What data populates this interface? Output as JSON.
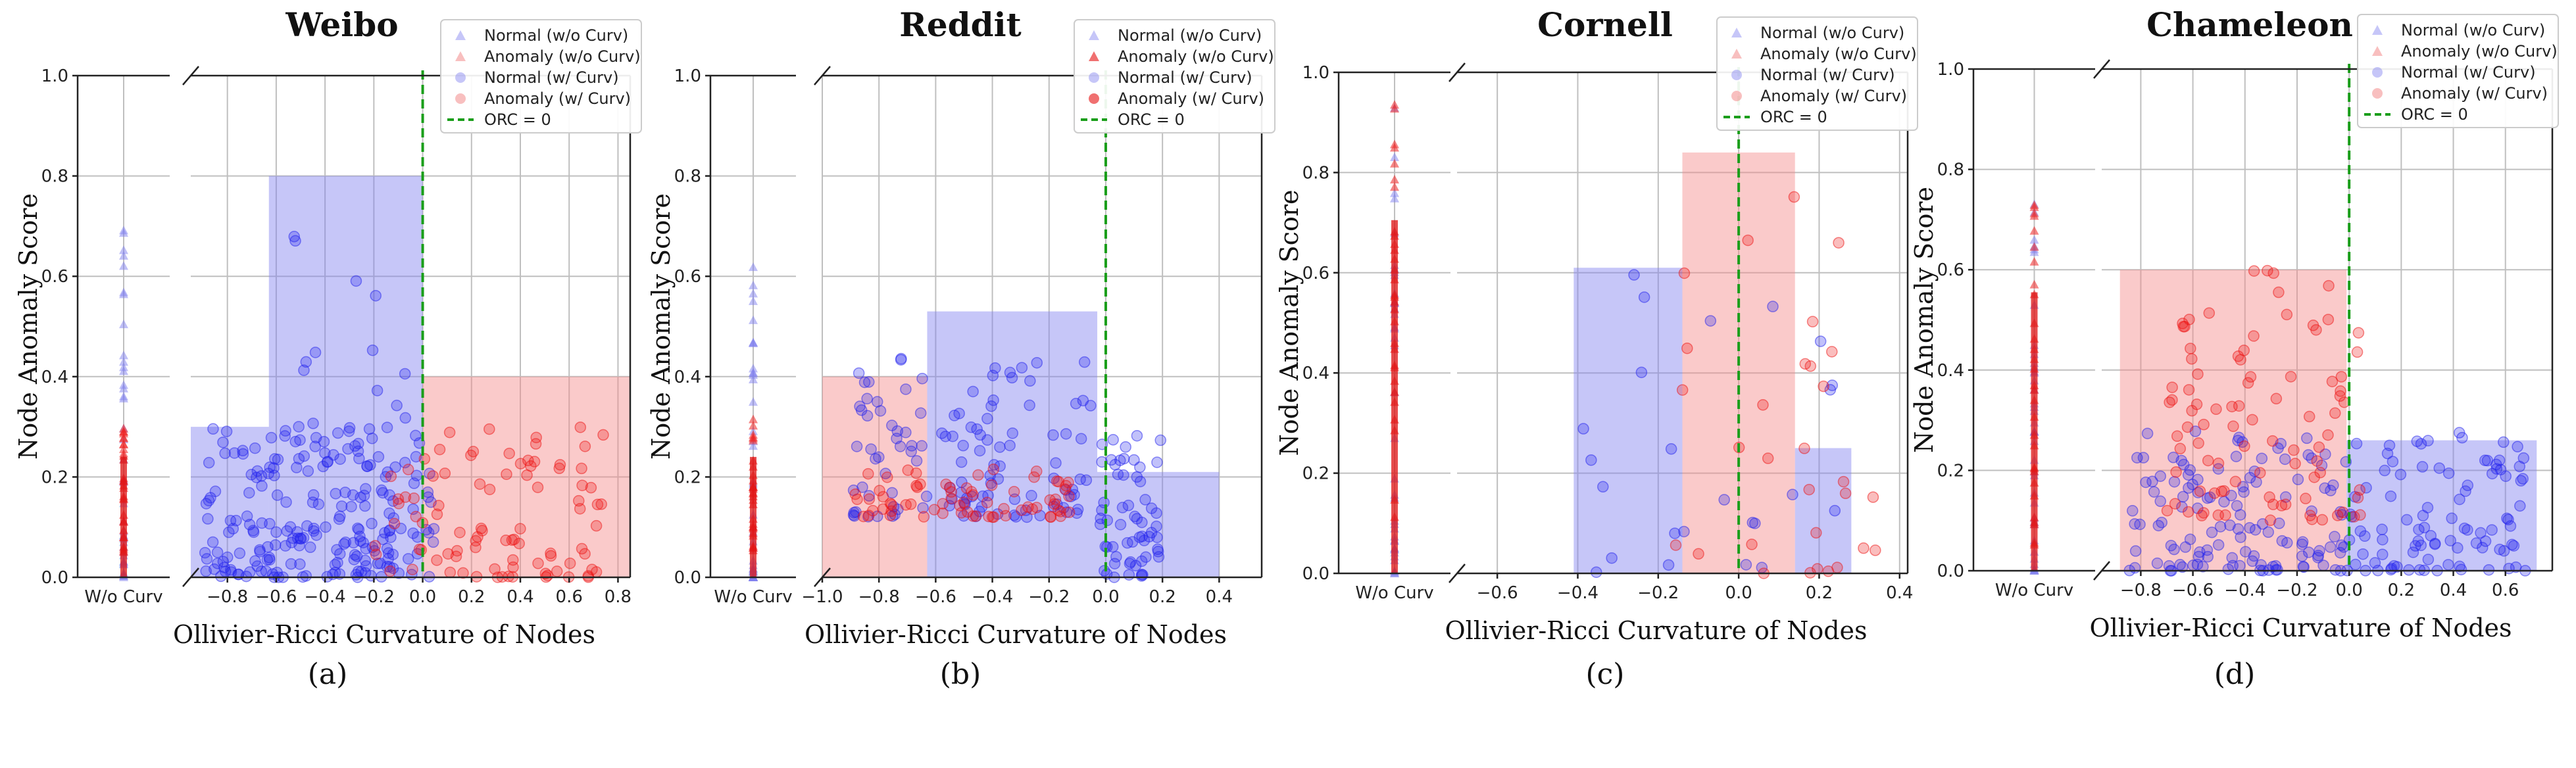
{
  "chart_data": [
    {
      "type": "scatter",
      "panel": "a",
      "title": "Weibo",
      "caption": "(a)",
      "xlabel": "Ollivier-Ricci Curvature of Nodes",
      "ylabel": "Node Anomaly Score",
      "xlim": [
        -0.95,
        0.85
      ],
      "ylim": [
        0,
        1.0
      ],
      "xticks": [
        -0.8,
        -0.6,
        -0.4,
        -0.2,
        0.0,
        0.2,
        0.4,
        0.6,
        0.8
      ],
      "xtick_labels": [
        "−0.8",
        "−0.6",
        "−0.4",
        "−0.2",
        "0.0",
        "0.2",
        "0.4",
        "0.6",
        "0.8"
      ],
      "yticks": [
        0.0,
        0.2,
        0.4,
        0.6,
        0.8,
        1.0
      ],
      "ytick_labels": [
        "0.0",
        "0.2",
        "0.4",
        "0.6",
        "0.8",
        "1.0"
      ],
      "strip_label": "W/o Curv",
      "bars": [
        {
          "x0": -0.95,
          "x1": -0.63,
          "height": 0.3,
          "color": "#8080f0"
        },
        {
          "x0": -0.63,
          "x1": 0.0,
          "height": 0.8,
          "color": "#8080f0"
        },
        {
          "x0": 0.0,
          "x1": 0.85,
          "height": 0.4,
          "color": "#f58a8a"
        }
      ],
      "orc_line_x": 0.0,
      "clusters": [
        {
          "series": "normal_curv",
          "x": [
            -0.9,
            0.05
          ],
          "y": [
            0.0,
            0.3
          ],
          "n": 220
        },
        {
          "series": "normal_curv",
          "x": [
            -0.6,
            -0.05
          ],
          "y": [
            0.3,
            0.8
          ],
          "n": 14
        },
        {
          "series": "anomaly_curv",
          "x": [
            -0.2,
            0.75
          ],
          "y": [
            0.0,
            0.3
          ],
          "n": 90
        }
      ],
      "strip": {
        "normal_max": 0.74,
        "anomaly_max": 0.32,
        "legend_loc": "top-right"
      }
    },
    {
      "type": "scatter",
      "panel": "b",
      "title": "Reddit",
      "caption": "(b)",
      "xlabel": "Ollivier-Ricci Curvature of Nodes",
      "ylabel": "Node Anomaly Score",
      "xlim": [
        -1.0,
        0.55
      ],
      "ylim": [
        0,
        1.0
      ],
      "xticks": [
        -1.0,
        -0.8,
        -0.6,
        -0.4,
        -0.2,
        0.0,
        0.2,
        0.4
      ],
      "xtick_labels": [
        "−1.0",
        "−0.8",
        "−0.6",
        "−0.4",
        "−0.2",
        "0.0",
        "0.2",
        "0.4"
      ],
      "yticks": [
        0.0,
        0.2,
        0.4,
        0.6,
        0.8,
        1.0
      ],
      "ytick_labels": [
        "0.0",
        "0.2",
        "0.4",
        "0.6",
        "0.8",
        "1.0"
      ],
      "strip_label": "W/o Curv",
      "bars": [
        {
          "x0": -1.0,
          "x1": -0.63,
          "height": 0.4,
          "color": "#f58a8a"
        },
        {
          "x0": -0.63,
          "x1": -0.03,
          "height": 0.53,
          "color": "#8080f0"
        },
        {
          "x0": -0.03,
          "x1": 0.4,
          "height": 0.21,
          "color": "#8080f0"
        }
      ],
      "orc_line_x": 0.0,
      "clusters": [
        {
          "series": "normal_curv",
          "x": [
            -0.9,
            -0.05
          ],
          "y": [
            0.12,
            0.45
          ],
          "n": 120
        },
        {
          "series": "normal_curv",
          "x": [
            -0.02,
            0.2
          ],
          "y": [
            0.0,
            0.3
          ],
          "n": 60
        },
        {
          "series": "anomaly_curv",
          "x": [
            -0.9,
            -0.1
          ],
          "y": [
            0.12,
            0.22
          ],
          "n": 70
        }
      ],
      "strip": {
        "normal_max": 0.7,
        "anomaly_max": 0.32,
        "legend_loc": "top-right"
      }
    },
    {
      "type": "scatter",
      "panel": "c",
      "title": "Cornell",
      "caption": "(c)",
      "xlabel": "Ollivier-Ricci Curvature of Nodes",
      "ylabel": "Node Anomaly Score",
      "xlim": [
        -0.7,
        0.42
      ],
      "ylim": [
        0,
        1.0
      ],
      "xticks": [
        -0.6,
        -0.4,
        -0.2,
        0.0,
        0.2,
        0.4
      ],
      "xtick_labels": [
        "−0.6",
        "−0.4",
        "−0.2",
        "0.0",
        "0.2",
        "0.4"
      ],
      "yticks": [
        0.0,
        0.2,
        0.4,
        0.6,
        0.8,
        1.0
      ],
      "ytick_labels": [
        "0.0",
        "0.2",
        "0.4",
        "0.6",
        "0.8",
        "1.0"
      ],
      "strip_label": "W/o Curv",
      "bars": [
        {
          "x0": -0.41,
          "x1": -0.14,
          "height": 0.61,
          "color": "#8080f0"
        },
        {
          "x0": -0.14,
          "x1": 0.14,
          "height": 0.84,
          "color": "#f58a8a"
        },
        {
          "x0": 0.14,
          "x1": 0.28,
          "height": 0.25,
          "color": "#8080f0"
        }
      ],
      "orc_line_x": 0.0,
      "clusters": [
        {
          "series": "normal_curv",
          "x": [
            -0.45,
            0.25
          ],
          "y": [
            0.0,
            0.6
          ],
          "n": 24
        },
        {
          "series": "anomaly_curv",
          "x": [
            -0.2,
            0.34
          ],
          "y": [
            0.0,
            0.8
          ],
          "n": 30
        }
      ],
      "strip": {
        "normal_max": 0.94,
        "anomaly_max": 0.94,
        "legend_loc": "top-right"
      }
    },
    {
      "type": "scatter",
      "panel": "d",
      "title": "Chameleon",
      "caption": "(d)",
      "xlabel": "Ollivier-Ricci Curvature of Nodes",
      "ylabel": "Node Anomaly Score",
      "xlim": [
        -0.95,
        0.78
      ],
      "ylim": [
        0,
        1.0
      ],
      "xticks": [
        -0.8,
        -0.6,
        -0.4,
        -0.2,
        0.0,
        0.2,
        0.4,
        0.6
      ],
      "xtick_labels": [
        "−0.8",
        "−0.6",
        "−0.4",
        "−0.2",
        "0.0",
        "0.2",
        "0.4",
        "0.6"
      ],
      "yticks": [
        0.0,
        0.2,
        0.4,
        0.6,
        0.8,
        1.0
      ],
      "ytick_labels": [
        "0.0",
        "0.2",
        "0.4",
        "0.6",
        "0.8",
        "1.0"
      ],
      "strip_label": "W/o Curv",
      "bars": [
        {
          "x0": -0.88,
          "x1": -0.01,
          "height": 0.6,
          "color": "#f58a8a"
        },
        {
          "x0": -0.01,
          "x1": 0.72,
          "height": 0.26,
          "color": "#8080f0"
        }
      ],
      "orc_line_x": 0.0,
      "clusters": [
        {
          "series": "normal_curv",
          "x": [
            -0.85,
            0.7
          ],
          "y": [
            0.0,
            0.28
          ],
          "n": 220
        },
        {
          "series": "anomaly_curv",
          "x": [
            -0.7,
            0.05
          ],
          "y": [
            0.1,
            0.6
          ],
          "n": 90
        }
      ],
      "strip": {
        "normal_max": 0.74,
        "anomaly_max": 0.74,
        "legend_loc": "top-right"
      }
    }
  ],
  "legend": {
    "items": [
      {
        "label": "Normal (w/o Curv)",
        "marker": "triangle",
        "color": "#8080f0",
        "alpha": 0.45
      },
      {
        "label": "Anomaly (w/o Curv)",
        "marker": "triangle",
        "color": "#f07070",
        "alpha": 0.45
      },
      {
        "label": "Normal (w/ Curv)",
        "marker": "circle",
        "color": "#8080f0",
        "alpha": 0.45
      },
      {
        "label": "Anomaly (w/ Curv)",
        "marker": "circle",
        "color": "#f07070",
        "alpha": 0.45
      },
      {
        "label": "ORC = 0",
        "marker": "dash",
        "color": "#1a9e1a",
        "alpha": 1
      }
    ],
    "reddit_items_alpha": [
      0.45,
      1,
      0.45,
      1,
      1
    ]
  },
  "colors": {
    "normal": "#2222ee",
    "anomaly": "#ee1111",
    "orc_line": "#1a9e1a"
  }
}
